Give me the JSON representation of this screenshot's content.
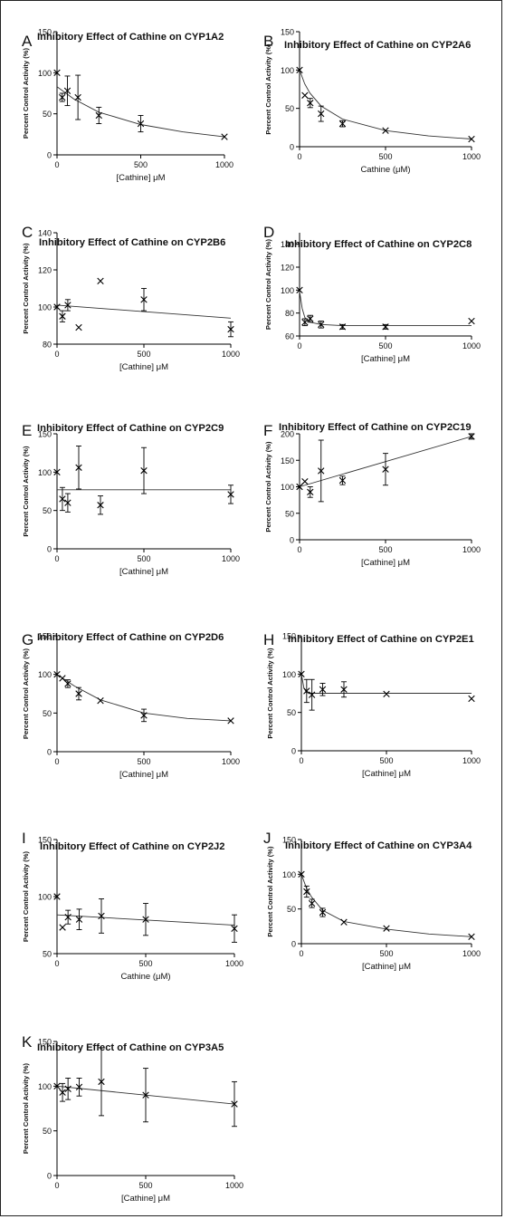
{
  "chart_data": [
    {
      "letter": "A",
      "type": "scatter",
      "title": "Inhibitory Effect of Cathine on CYP1A2",
      "xlabel": "[Cathine] μM",
      "ylabel": "Percent Control Activity (%)",
      "xticks": [
        "0",
        "500",
        "1000"
      ],
      "yticks": [
        "0",
        "50",
        "100",
        "150"
      ],
      "xlim": [
        0,
        1000
      ],
      "ylim": [
        0,
        150
      ],
      "points": [
        {
          "x": 0,
          "y": 100
        },
        {
          "x": 31,
          "y": 70,
          "err": 5
        },
        {
          "x": 62,
          "y": 78,
          "err": 18
        },
        {
          "x": 125,
          "y": 70,
          "err": 27
        },
        {
          "x": 250,
          "y": 48,
          "err": 10
        },
        {
          "x": 500,
          "y": 38,
          "err": 10
        },
        {
          "x": 1000,
          "y": 22
        }
      ],
      "fit": [
        [
          0,
          83
        ],
        [
          100,
          68
        ],
        [
          250,
          52
        ],
        [
          500,
          37
        ],
        [
          750,
          28
        ],
        [
          1000,
          22
        ]
      ]
    },
    {
      "letter": "B",
      "type": "scatter",
      "title": "Inhibitory Effect of Cathine on CYP2A6",
      "xlabel": "Cathine (μM)",
      "ylabel": "Percent Control Activity (%)",
      "xticks": [
        "0",
        "500",
        "1000"
      ],
      "yticks": [
        "0",
        "50",
        "100",
        "150"
      ],
      "xlim": [
        0,
        1000
      ],
      "ylim": [
        0,
        150
      ],
      "points": [
        {
          "x": 0,
          "y": 100
        },
        {
          "x": 31,
          "y": 67
        },
        {
          "x": 62,
          "y": 57,
          "err": 6
        },
        {
          "x": 125,
          "y": 43,
          "err": 10
        },
        {
          "x": 250,
          "y": 30,
          "err": 4
        },
        {
          "x": 500,
          "y": 21
        },
        {
          "x": 1000,
          "y": 10
        }
      ],
      "fit": [
        [
          0,
          100
        ],
        [
          30,
          82
        ],
        [
          60,
          70
        ],
        [
          125,
          53
        ],
        [
          250,
          36
        ],
        [
          500,
          21
        ],
        [
          750,
          14
        ],
        [
          1000,
          10
        ]
      ]
    },
    {
      "letter": "C",
      "type": "scatter",
      "title": "Inhibitory Effect of Cathine on CYP2B6",
      "xlabel": "[Cathine] μM",
      "ylabel": "Percent Control Activity (%)",
      "xticks": [
        "0",
        "500",
        "1000"
      ],
      "yticks": [
        "80",
        "100",
        "120",
        "140"
      ],
      "xlim": [
        0,
        1000
      ],
      "ylim": [
        80,
        140
      ],
      "points": [
        {
          "x": 0,
          "y": 100
        },
        {
          "x": 31,
          "y": 95,
          "err": 3
        },
        {
          "x": 62,
          "y": 101,
          "err": 3
        },
        {
          "x": 125,
          "y": 89
        },
        {
          "x": 250,
          "y": 114
        },
        {
          "x": 500,
          "y": 104,
          "err": 6
        },
        {
          "x": 1000,
          "y": 88,
          "err": 4
        }
      ],
      "fit": [
        [
          0,
          101
        ],
        [
          1000,
          94
        ]
      ]
    },
    {
      "letter": "D",
      "type": "scatter",
      "title": "Inhibitory Effect of Cathine on CYP2C8",
      "xlabel": "[Cathine] μM",
      "ylabel": "Percent Control Activity (%)",
      "xticks": [
        "0",
        "500",
        "1000"
      ],
      "yticks": [
        "60",
        "80",
        "100",
        "120",
        "140"
      ],
      "xlim": [
        0,
        1000
      ],
      "ylim": [
        60,
        150
      ],
      "points": [
        {
          "x": 0,
          "y": 100
        },
        {
          "x": 31,
          "y": 72,
          "err": 3
        },
        {
          "x": 62,
          "y": 75,
          "err": 3
        },
        {
          "x": 125,
          "y": 70,
          "err": 3
        },
        {
          "x": 250,
          "y": 68,
          "err": 2
        },
        {
          "x": 500,
          "y": 68,
          "err": 2
        },
        {
          "x": 1000,
          "y": 73
        }
      ],
      "fit": [
        [
          0,
          99
        ],
        [
          15,
          84
        ],
        [
          31,
          76
        ],
        [
          62,
          72
        ],
        [
          125,
          70
        ],
        [
          250,
          69
        ],
        [
          1000,
          69
        ]
      ]
    },
    {
      "letter": "E",
      "type": "scatter",
      "title": "Inhibitory Effect of Cathine on CYP2C9",
      "xlabel": "[Cathine] μM",
      "ylabel": "Percent Control Activity (%)",
      "xticks": [
        "0",
        "500",
        "1000"
      ],
      "yticks": [
        "0",
        "50",
        "100",
        "150"
      ],
      "xlim": [
        0,
        1000
      ],
      "ylim": [
        0,
        150
      ],
      "points": [
        {
          "x": 0,
          "y": 100
        },
        {
          "x": 31,
          "y": 65,
          "err": 15
        },
        {
          "x": 62,
          "y": 60,
          "err": 12
        },
        {
          "x": 125,
          "y": 106,
          "err": 28
        },
        {
          "x": 250,
          "y": 57,
          "err": 12
        },
        {
          "x": 500,
          "y": 102,
          "err": 30
        },
        {
          "x": 1000,
          "y": 71,
          "err": 12
        }
      ],
      "fit": [
        [
          0,
          77
        ],
        [
          1000,
          77
        ]
      ]
    },
    {
      "letter": "F",
      "type": "scatter",
      "title": "Inhibitory Effect of Cathine on CYP2C19",
      "xlabel": "[Cathine] μM",
      "ylabel": "Percent Control Activity (%)",
      "xticks": [
        "0",
        "500",
        "1000"
      ],
      "yticks": [
        "0",
        "50",
        "100",
        "150",
        "200"
      ],
      "xlim": [
        0,
        1000
      ],
      "ylim": [
        0,
        200
      ],
      "points": [
        {
          "x": 0,
          "y": 100
        },
        {
          "x": 31,
          "y": 110
        },
        {
          "x": 62,
          "y": 90,
          "err": 10
        },
        {
          "x": 125,
          "y": 130,
          "err": 58
        },
        {
          "x": 250,
          "y": 112,
          "err": 8
        },
        {
          "x": 500,
          "y": 133,
          "err": 30
        },
        {
          "x": 1000,
          "y": 195,
          "err": 5
        }
      ],
      "fit": [
        [
          0,
          100
        ],
        [
          1000,
          195
        ]
      ]
    },
    {
      "letter": "G",
      "type": "scatter",
      "title": "Inhibitory Effect of Cathine on CYP2D6",
      "xlabel": "[Cathine] μM",
      "ylabel": "Percent Control Activity (%)",
      "xticks": [
        "0",
        "500",
        "1000"
      ],
      "yticks": [
        "0",
        "50",
        "100",
        "150"
      ],
      "xlim": [
        0,
        1000
      ],
      "ylim": [
        0,
        150
      ],
      "points": [
        {
          "x": 0,
          "y": 100
        },
        {
          "x": 31,
          "y": 95
        },
        {
          "x": 62,
          "y": 88,
          "err": 5
        },
        {
          "x": 125,
          "y": 75,
          "err": 8
        },
        {
          "x": 250,
          "y": 66
        },
        {
          "x": 500,
          "y": 47,
          "err": 8
        },
        {
          "x": 1000,
          "y": 40
        }
      ],
      "fit": [
        [
          0,
          100
        ],
        [
          100,
          85
        ],
        [
          250,
          67
        ],
        [
          500,
          50
        ],
        [
          750,
          43
        ],
        [
          1000,
          40
        ]
      ]
    },
    {
      "letter": "H",
      "type": "scatter",
      "title": "Inhibitory Effect of Cathine on CYP2E1",
      "xlabel": "[Cathine] μM",
      "ylabel": "Percent Control Activity (%)",
      "xticks": [
        "0",
        "500",
        "1000"
      ],
      "yticks": [
        "0",
        "50",
        "100",
        "150"
      ],
      "xlim": [
        0,
        1000
      ],
      "ylim": [
        0,
        150
      ],
      "points": [
        {
          "x": 0,
          "y": 100
        },
        {
          "x": 31,
          "y": 78,
          "err": 15
        },
        {
          "x": 62,
          "y": 73,
          "err": 20
        },
        {
          "x": 125,
          "y": 80,
          "err": 8
        },
        {
          "x": 250,
          "y": 80,
          "err": 10
        },
        {
          "x": 500,
          "y": 74
        },
        {
          "x": 1000,
          "y": 68
        }
      ],
      "fit": [
        [
          0,
          100
        ],
        [
          15,
          82
        ],
        [
          30,
          76
        ],
        [
          60,
          75
        ],
        [
          1000,
          75
        ]
      ]
    },
    {
      "letter": "I",
      "type": "scatter",
      "title": "Inhibitory Effect of Cathine on CYP2J2",
      "xlabel": "Cathine (μM)",
      "ylabel": "Percent Control Activity (%)",
      "xticks": [
        "0",
        "500",
        "1000"
      ],
      "yticks": [
        "50",
        "100",
        "150"
      ],
      "xlim": [
        0,
        1000
      ],
      "ylim": [
        50,
        150
      ],
      "points": [
        {
          "x": 0,
          "y": 100
        },
        {
          "x": 31,
          "y": 73
        },
        {
          "x": 62,
          "y": 82,
          "err": 6
        },
        {
          "x": 125,
          "y": 80,
          "err": 9
        },
        {
          "x": 250,
          "y": 83,
          "err": 15
        },
        {
          "x": 500,
          "y": 80,
          "err": 14
        },
        {
          "x": 1000,
          "y": 72,
          "err": 12
        }
      ],
      "fit": [
        [
          0,
          84
        ],
        [
          1000,
          75
        ]
      ]
    },
    {
      "letter": "J",
      "type": "scatter",
      "title": "Inhibitory Effect of Cathine on CYP3A4",
      "xlabel": "[Cathine] μM",
      "ylabel": "Percent Control Activity (%)",
      "xticks": [
        "0",
        "500",
        "1000"
      ],
      "yticks": [
        "0",
        "50",
        "100",
        "150"
      ],
      "xlim": [
        0,
        1000
      ],
      "ylim": [
        0,
        150
      ],
      "points": [
        {
          "x": 0,
          "y": 100
        },
        {
          "x": 31,
          "y": 75,
          "err": 8
        },
        {
          "x": 62,
          "y": 58,
          "err": 6
        },
        {
          "x": 125,
          "y": 45,
          "err": 6
        },
        {
          "x": 250,
          "y": 31
        },
        {
          "x": 500,
          "y": 22
        },
        {
          "x": 1000,
          "y": 10
        }
      ],
      "fit": [
        [
          0,
          100
        ],
        [
          30,
          80
        ],
        [
          60,
          67
        ],
        [
          125,
          48
        ],
        [
          250,
          32
        ],
        [
          500,
          21
        ],
        [
          750,
          14
        ],
        [
          1000,
          10
        ]
      ]
    },
    {
      "letter": "K",
      "type": "scatter",
      "title": "Inhibitory Effect of Cathine on CYP3A5",
      "xlabel": "[Cathine] μM",
      "ylabel": "Percent Control Activity (%)",
      "xticks": [
        "0",
        "500",
        "1000"
      ],
      "yticks": [
        "0",
        "50",
        "100",
        "150"
      ],
      "xlim": [
        0,
        1000
      ],
      "ylim": [
        0,
        150
      ],
      "points": [
        {
          "x": 0,
          "y": 100
        },
        {
          "x": 31,
          "y": 93,
          "err": 10
        },
        {
          "x": 62,
          "y": 97,
          "err": 12
        },
        {
          "x": 125,
          "y": 99,
          "err": 10
        },
        {
          "x": 250,
          "y": 105,
          "err": 38
        },
        {
          "x": 500,
          "y": 90,
          "err": 30
        },
        {
          "x": 1000,
          "y": 80,
          "err": 25
        }
      ],
      "fit": [
        [
          0,
          100
        ],
        [
          1000,
          80
        ]
      ]
    }
  ]
}
